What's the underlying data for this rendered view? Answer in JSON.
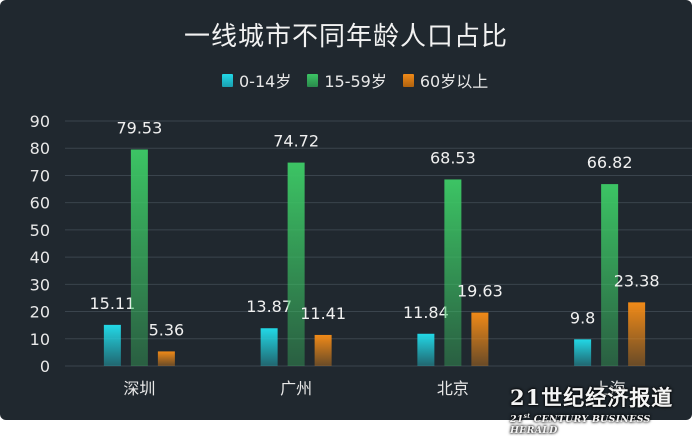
{
  "chart_data": {
    "type": "bar",
    "title": "一线城市不同年龄人口占比",
    "categories": [
      "深圳",
      "广州",
      "北京",
      "上海"
    ],
    "series": [
      {
        "name": "0-14岁",
        "values": [
          15.11,
          13.87,
          11.84,
          9.8
        ],
        "color": "#22d8e6"
      },
      {
        "name": "15-59岁",
        "values": [
          79.53,
          74.72,
          68.53,
          66.82
        ],
        "color": "#3cc464"
      },
      {
        "name": "60岁以上",
        "values": [
          5.36,
          11.41,
          19.63,
          23.38
        ],
        "color": "#f08a18"
      }
    ],
    "yticks": [
      0,
      10,
      20,
      30,
      40,
      50,
      60,
      70,
      80,
      90
    ],
    "ylim": [
      0,
      90
    ],
    "grid": true,
    "legend_position": "top-center",
    "background": "#20282f"
  },
  "watermark": {
    "main": "21世纪经济报道",
    "sub": "21st CENTURY BUSINESS HERALD"
  }
}
